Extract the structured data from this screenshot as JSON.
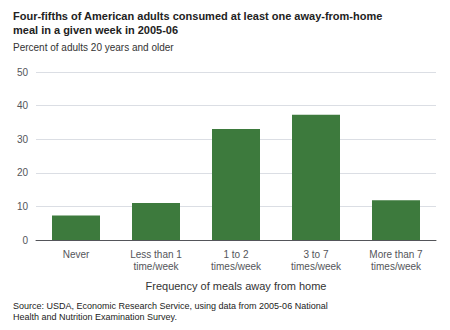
{
  "chart_data": {
    "type": "bar",
    "title": "Four-fifths of American adults consumed at least one away-from-home\nmeal in a given week in 2005-06",
    "subtitle": "Percent of adults 20 years and older",
    "xlabel": "Frequency of meals away from home",
    "source": "Source: USDA, Economic Research Service, using data from 2005-06 National\nHealth and Nutrition Examination Survey.",
    "categories": [
      "Never",
      "Less than 1\ntime/week",
      "1 to 2\ntimes/week",
      "3 to 7\ntimes/week",
      "More than 7\ntimes/week"
    ],
    "values": [
      7.3,
      11.0,
      33.0,
      37.3,
      11.8
    ],
    "color": "#3d7a3d",
    "ylim": [
      0,
      50
    ],
    "yticks": [
      0,
      10,
      20,
      30,
      40,
      50
    ],
    "grid": true
  }
}
